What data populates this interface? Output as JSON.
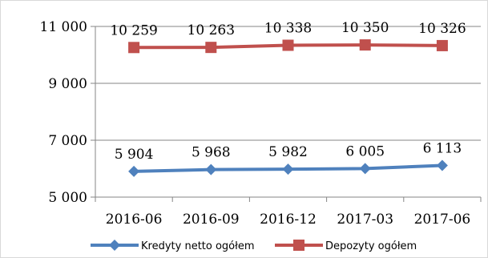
{
  "chart_data": {
    "type": "line",
    "categories": [
      "2016-06",
      "2016-09",
      "2016-12",
      "2017-03",
      "2017-06"
    ],
    "ylim": [
      5000,
      11000
    ],
    "yticks": [
      "5 000",
      "7 000",
      "9 000",
      "11 000"
    ],
    "ytick_values": [
      5000,
      7000,
      9000,
      11000
    ],
    "grid": true,
    "legend_position": "bottom",
    "series": [
      {
        "name": "Kredyty netto ogółem",
        "values": [
          5904,
          5968,
          5982,
          6005,
          6113
        ],
        "labels": [
          "5 904",
          "5 968",
          "5 982",
          "6 005",
          "6 113"
        ],
        "color": "#4f81bd",
        "marker": "diamond"
      },
      {
        "name": "Depozyty ogółem",
        "values": [
          10259,
          10263,
          10338,
          10350,
          10326
        ],
        "labels": [
          "10 259",
          "10 263",
          "10 338",
          "10 350",
          "10 326"
        ],
        "color": "#c0504d",
        "marker": "square"
      }
    ]
  }
}
